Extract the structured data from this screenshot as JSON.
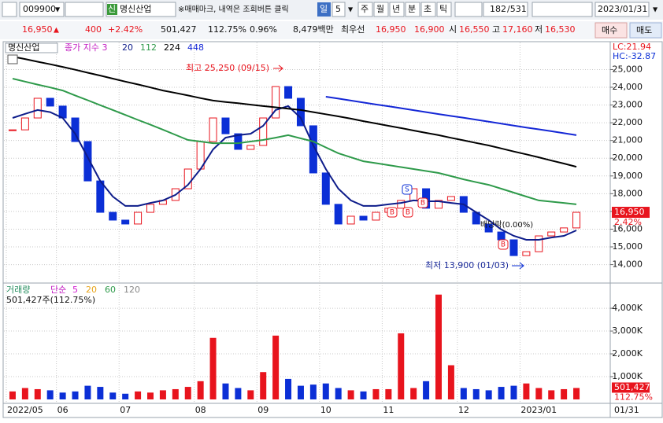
{
  "toolbar": {
    "code": "009900",
    "badge": "신",
    "name": "명신산업",
    "notice": "※매매마크, 내역은 조회버튼 클릭",
    "period": "일",
    "interval": "5",
    "periods": [
      "주",
      "월",
      "년",
      "분",
      "초",
      "틱"
    ],
    "shown": "182",
    "total": "/531",
    "date": "2023/01/31"
  },
  "quote": {
    "price": "16,950",
    "arrow": "▲",
    "change": "400",
    "rate": "+2.42%",
    "volume": "501,427",
    "volume_ratio": "112.75%",
    "turnover": "0.96%",
    "amount": "8,479백만",
    "best_label": "최우선",
    "ask": "16,950",
    "bid": "16,900",
    "open_label": "시",
    "open": "16,550",
    "high_label": "고",
    "high": "17,160",
    "low_label": "저",
    "low": "16,530",
    "buy": "매수",
    "sell": "매도"
  },
  "chart_data": {
    "type": "candlestick",
    "title": "명신산업",
    "ma_label": "종가 지수 3",
    "categories": [
      "2022/05",
      null,
      null,
      null,
      "06",
      null,
      null,
      null,
      null,
      "07",
      null,
      null,
      null,
      null,
      null,
      "08",
      null,
      null,
      null,
      null,
      "09",
      null,
      null,
      null,
      null,
      "10",
      null,
      null,
      null,
      null,
      "11",
      null,
      null,
      null,
      null,
      null,
      "12",
      null,
      null,
      null,
      null,
      "2023/01",
      null,
      null,
      null,
      null
    ],
    "last_date": "01/31",
    "close": [
      21600,
      22270,
      23380,
      22940,
      22270,
      20940,
      18720,
      16950,
      16510,
      16290,
      16950,
      17400,
      17620,
      18280,
      19390,
      20940,
      22270,
      21380,
      20500,
      20720,
      22270,
      24040,
      23380,
      21830,
      19170,
      17400,
      16290,
      16730,
      16510,
      16950,
      17180,
      17620,
      18280,
      17180,
      17620,
      17840,
      16950,
      16290,
      15840,
      15400,
      14510,
      14730,
      15620,
      15840,
      16070,
      16950
    ],
    "up_color": "#e8141d",
    "down_color": "#0b2fd6",
    "series": [
      {
        "name": "20",
        "color": "#0d1c8a",
        "values": [
          22270,
          22500,
          22720,
          22600,
          22270,
          21380,
          20050,
          18720,
          17840,
          17310,
          17310,
          17480,
          17620,
          17930,
          18500,
          19390,
          20500,
          21160,
          21300,
          21380,
          21830,
          22720,
          22940,
          22270,
          20720,
          19390,
          18280,
          17620,
          17310,
          17310,
          17400,
          17480,
          17620,
          17570,
          17570,
          17480,
          17400,
          16950,
          16510,
          15980,
          15620,
          15400,
          15400,
          15530,
          15620,
          15930
        ]
      },
      {
        "name": "112",
        "color": "#2e9a4a",
        "values": [
          24490,
          24320,
          24150,
          23990,
          23820,
          23540,
          23270,
          22990,
          22720,
          22440,
          22160,
          21890,
          21610,
          21320,
          21030,
          20940,
          20850,
          20850,
          20850,
          20940,
          21030,
          21160,
          21300,
          21120,
          20940,
          20610,
          20280,
          20050,
          19830,
          19720,
          19610,
          19500,
          19390,
          19280,
          19170,
          18990,
          18810,
          18650,
          18500,
          18280,
          18060,
          17840,
          17620,
          17550,
          17480,
          17400
        ]
      },
      {
        "name": "224",
        "color": "#000000",
        "values": [
          25730,
          25590,
          25440,
          25300,
          25150,
          24990,
          24820,
          24660,
          24490,
          24320,
          24160,
          23990,
          23820,
          23680,
          23540,
          23390,
          23250,
          23170,
          23100,
          23020,
          22940,
          22870,
          22790,
          22720,
          22600,
          22480,
          22360,
          22230,
          22090,
          21960,
          21830,
          21700,
          21560,
          21430,
          21300,
          21150,
          21010,
          20860,
          20720,
          20550,
          20380,
          20220,
          20050,
          19870,
          19700,
          19520
        ]
      },
      {
        "name": "448",
        "color": "#1427d6",
        "values": [
          null,
          null,
          null,
          null,
          null,
          null,
          null,
          null,
          null,
          null,
          null,
          null,
          null,
          null,
          null,
          null,
          null,
          null,
          null,
          null,
          null,
          null,
          null,
          null,
          null,
          23470,
          23360,
          23250,
          23140,
          23030,
          22930,
          22820,
          22710,
          22600,
          22490,
          22380,
          22280,
          22170,
          22060,
          21950,
          21840,
          21730,
          21630,
          21520,
          21410,
          21300
        ]
      }
    ],
    "ylim": [
      13050,
      26350
    ],
    "yticks": [
      {
        "value": 14000,
        "label": "14,000"
      },
      {
        "value": 15000,
        "label": "15,000"
      },
      {
        "value": 16000,
        "label": "16,000"
      },
      {
        "value": 17000,
        "label": "17,000"
      },
      {
        "value": 18000,
        "label": "18,000"
      },
      {
        "value": 19000,
        "label": "19,000"
      },
      {
        "value": 20000,
        "label": "20,000"
      },
      {
        "value": 21000,
        "label": "21,000"
      },
      {
        "value": 22000,
        "label": "22,000"
      },
      {
        "value": 23000,
        "label": "23,000"
      },
      {
        "value": 24000,
        "label": "24,000"
      },
      {
        "value": 25000,
        "label": "25,000"
      }
    ],
    "grid": true,
    "lc": "LC:21.94",
    "hc": "HC:-32.87",
    "annotations": {
      "high": "최고 25,250 (09/15)",
      "low": "최저 13,900 (01/03)",
      "ex_dividend": "배당락(0.00%)"
    },
    "price_tag": "16,950",
    "rate_tag": "2.42%",
    "signals": [
      "S",
      "B",
      "B",
      "B",
      "B"
    ],
    "volume": {
      "title": "거래량",
      "ma_label": "단순",
      "ma": [
        {
          "name": "5",
          "color": "#d21bd2"
        },
        {
          "name": "20",
          "color": "#e8a317"
        },
        {
          "name": "60",
          "color": "#2e9a4a"
        },
        {
          "name": "120",
          "color": "#888888"
        }
      ],
      "summary": "501,427주(112.75%)",
      "values": [
        350000,
        500000,
        450000,
        400000,
        300000,
        350000,
        600000,
        550000,
        300000,
        250000,
        350000,
        300000,
        400000,
        450000,
        550000,
        800000,
        2700000,
        700000,
        500000,
        400000,
        1200000,
        2800000,
        900000,
        600000,
        650000,
        700000,
        500000,
        400000,
        350000,
        450000,
        450000,
        2900000,
        500000,
        800000,
        4600000,
        1500000,
        500000,
        450000,
        400000,
        550000,
        600000,
        700000,
        500000,
        400000,
        450000,
        501427
      ],
      "ylim": [
        0,
        4900000
      ],
      "yticks": [
        {
          "value": 1000000,
          "label": "1,000K"
        },
        {
          "value": 2000000,
          "label": "2,000K"
        },
        {
          "value": 3000000,
          "label": "3,000K"
        },
        {
          "value": 4000000,
          "label": "4,000K"
        }
      ],
      "tag": "501,427",
      "ratio_tag": "112.75%"
    }
  }
}
